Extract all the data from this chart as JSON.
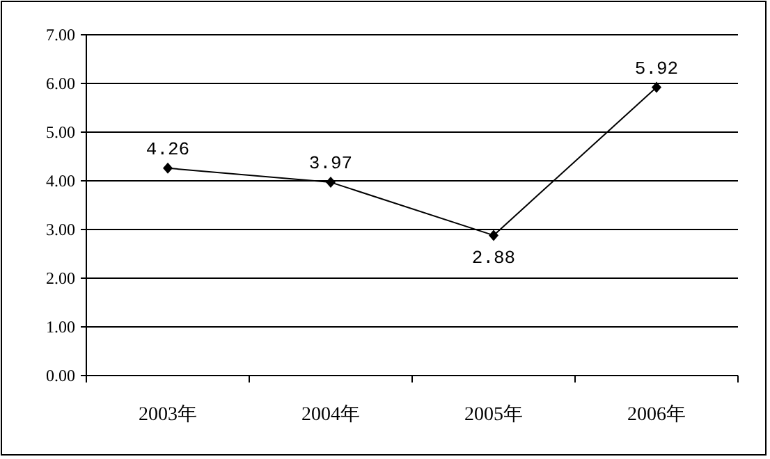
{
  "chart_data": {
    "type": "line",
    "categories": [
      "2003年",
      "2004年",
      "2005年",
      "2006年"
    ],
    "series": [
      {
        "color": "#000000",
        "values": [
          4.26,
          3.97,
          2.88,
          5.92
        ]
      }
    ],
    "ylim": [
      0,
      7
    ],
    "yticks": [
      {
        "value": 0,
        "label": "0.00"
      },
      {
        "value": 1,
        "label": "1.00"
      },
      {
        "value": 2,
        "label": "2.00"
      },
      {
        "value": 3,
        "label": "3.00"
      },
      {
        "value": 4,
        "label": "4.00"
      },
      {
        "value": 5,
        "label": "5.00"
      },
      {
        "value": 6,
        "label": "6.00"
      },
      {
        "value": 7,
        "label": "7.00"
      }
    ],
    "grid": "y",
    "marker": "diamond",
    "line_style": "solid",
    "data_labels": true
  }
}
